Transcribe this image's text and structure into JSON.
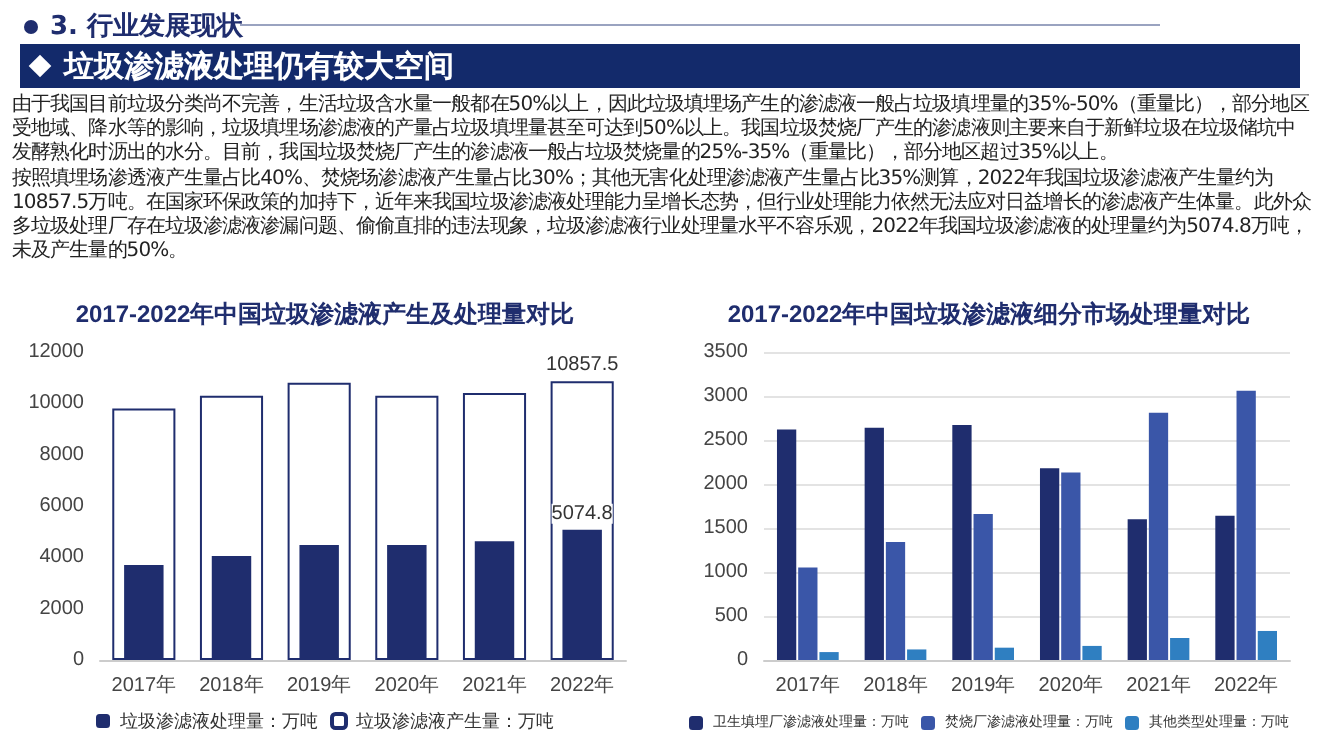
{
  "chart_data": [
    {
      "type": "bar",
      "title": "2017-2022年中国垃圾渗滤液产生及处理量对比",
      "annotations": [
        "3. 行业发展现状",
        "垃圾渗滤液处理仍有较大空间",
        "由于我国目前垃圾分类尚不完善，生活垃圾含水量一般都在50%以上，因此垃圾填埋场产生的渗滤液一般占垃圾填埋量的35%-50%（重量比），部分地区受地域、降水等的影响，垃圾填埋场渗滤液的产量占垃圾填埋量甚至可达到50%以上。我国垃圾焚烧厂产生的渗滤液则主要来自于新鲜垃圾在垃圾储坑中发酵熟化时沥出的水分。目前，我国垃圾焚烧厂产生的渗滤液一般占垃圾焚烧量的25%-35%（重量比），部分地区超过35%以上。",
        "按照填埋场渗透液产生量占比40%、焚烧场渗滤液产生量占比30%；其他无害化处理渗滤液产生量占比35%测算，2022年我国垃圾渗滤液产生量约为10857.5万吨。在国家环保政策的加持下，近年来我国垃圾渗滤液处理能力呈增长态势，但行业处理能力依然无法应对日益增长的渗滤液产生体量。此外众多垃圾处理厂存在垃圾渗滤液渗漏问题、偷偷直排的违法现象，垃圾渗滤液行业处理量水平不容乐观，2022年我国垃圾渗滤液的处理量约为5074.8万吨，未及产生量的50%。"
      ],
      "categories": [
        "2017年",
        "2018年",
        "2019年",
        "2020年",
        "2021年",
        "2022年"
      ],
      "series": [
        {
          "name": "垃圾渗滤液处理量：万吨",
          "color": "#1f2d6e",
          "values": [
            3700,
            4050,
            4480,
            4480,
            4630,
            5074.8
          ],
          "value_labels": [
            null,
            null,
            null,
            null,
            null,
            "5074.8"
          ]
        },
        {
          "name": "垃圾渗滤液产生量：万吨",
          "color": "#ffffff",
          "values": [
            9800,
            10300,
            10800,
            10300,
            10400,
            10857.5
          ],
          "value_labels": [
            null,
            null,
            null,
            null,
            null,
            "10857.5"
          ]
        }
      ],
      "ylim": [
        0,
        12000
      ],
      "yticks": [
        0,
        2000,
        4000,
        6000,
        8000,
        10000,
        12000
      ],
      "grid": false,
      "legend": "bottom"
    },
    {
      "type": "bar",
      "title": "2017-2022年中国垃圾渗滤液细分市场处理量对比",
      "categories": [
        "2017年",
        "2018年",
        "2019年",
        "2020年",
        "2021年",
        "2022年"
      ],
      "series": [
        {
          "name": "卫生填埋厂渗滤液处理量：万吨",
          "color": "#1f2d6e",
          "values": [
            2620,
            2640,
            2670,
            2180,
            1600,
            1640
          ]
        },
        {
          "name": "焚烧厂渗滤液处理量：万吨",
          "color": "#3a56a8",
          "values": [
            1050,
            1340,
            1660,
            2130,
            2810,
            3060
          ]
        },
        {
          "name": "其他类型处理量：万吨",
          "color": "#2f7fc1",
          "values": [
            90,
            120,
            140,
            160,
            250,
            330
          ]
        }
      ],
      "ylim": [
        0,
        3500
      ],
      "yticks": [
        0,
        500,
        1000,
        1500,
        2000,
        2500,
        3000,
        3500
      ],
      "grid": "y",
      "legend": "bottom"
    }
  ]
}
